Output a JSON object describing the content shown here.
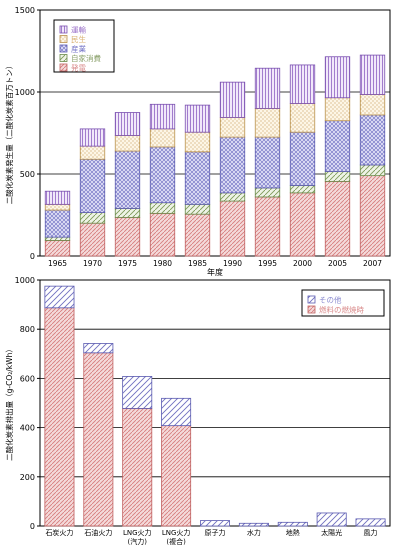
{
  "chart_data": [
    {
      "type": "bar",
      "stacked": true,
      "categories": [
        "1965",
        "1970",
        "1975",
        "1980",
        "1985",
        "1990",
        "1995",
        "2000",
        "2005",
        "2007"
      ],
      "series": [
        {
          "name": "発電",
          "values": [
            95,
            200,
            235,
            260,
            255,
            335,
            360,
            385,
            455,
            490
          ],
          "color": "#d98a8a"
        },
        {
          "name": "自家消費",
          "values": [
            20,
            65,
            55,
            65,
            60,
            50,
            55,
            45,
            60,
            65
          ],
          "color": "#8aa06a"
        },
        {
          "name": "産業",
          "values": [
            165,
            325,
            350,
            340,
            320,
            340,
            310,
            325,
            310,
            305
          ],
          "color": "#7878c8"
        },
        {
          "name": "民生",
          "values": [
            35,
            80,
            95,
            110,
            120,
            120,
            175,
            175,
            140,
            125
          ],
          "color": "#d8b070"
        },
        {
          "name": "運輸",
          "values": [
            80,
            105,
            140,
            150,
            165,
            215,
            245,
            235,
            250,
            240
          ],
          "color": "#9a70c8"
        }
      ],
      "xlabel": "年度",
      "ylabel": "二酸化炭素発生量（二酸化炭素百万トン）",
      "ylim": [
        0,
        1500
      ],
      "yticks": [
        "0",
        "500",
        "1000",
        "1500"
      ],
      "grid": true,
      "legend_position": "top-left"
    },
    {
      "type": "bar",
      "stacked": true,
      "categories": [
        "石炭火力",
        "石油火力",
        "LNG火力\n(汽力)",
        "LNG火力\n(複合)",
        "原子力",
        "水力",
        "地熱",
        "太陽光",
        "風力"
      ],
      "series": [
        {
          "name": "燃料の燃焼時",
          "values": [
            887,
            704,
            478,
            408,
            0,
            0,
            0,
            0,
            0
          ],
          "color": "#d98a8a"
        },
        {
          "name": "その他",
          "values": [
            88,
            38,
            130,
            111,
            22,
            11,
            15,
            53,
            29
          ],
          "color": "#8c8cd0"
        }
      ],
      "ylabel": "二酸化炭素排出量（g-CO₂/kWh）",
      "ylim": [
        0,
        1000
      ],
      "yticks": [
        "0",
        "200",
        "400",
        "600",
        "800",
        "1000"
      ],
      "grid": true,
      "legend_position": "top-right"
    }
  ]
}
